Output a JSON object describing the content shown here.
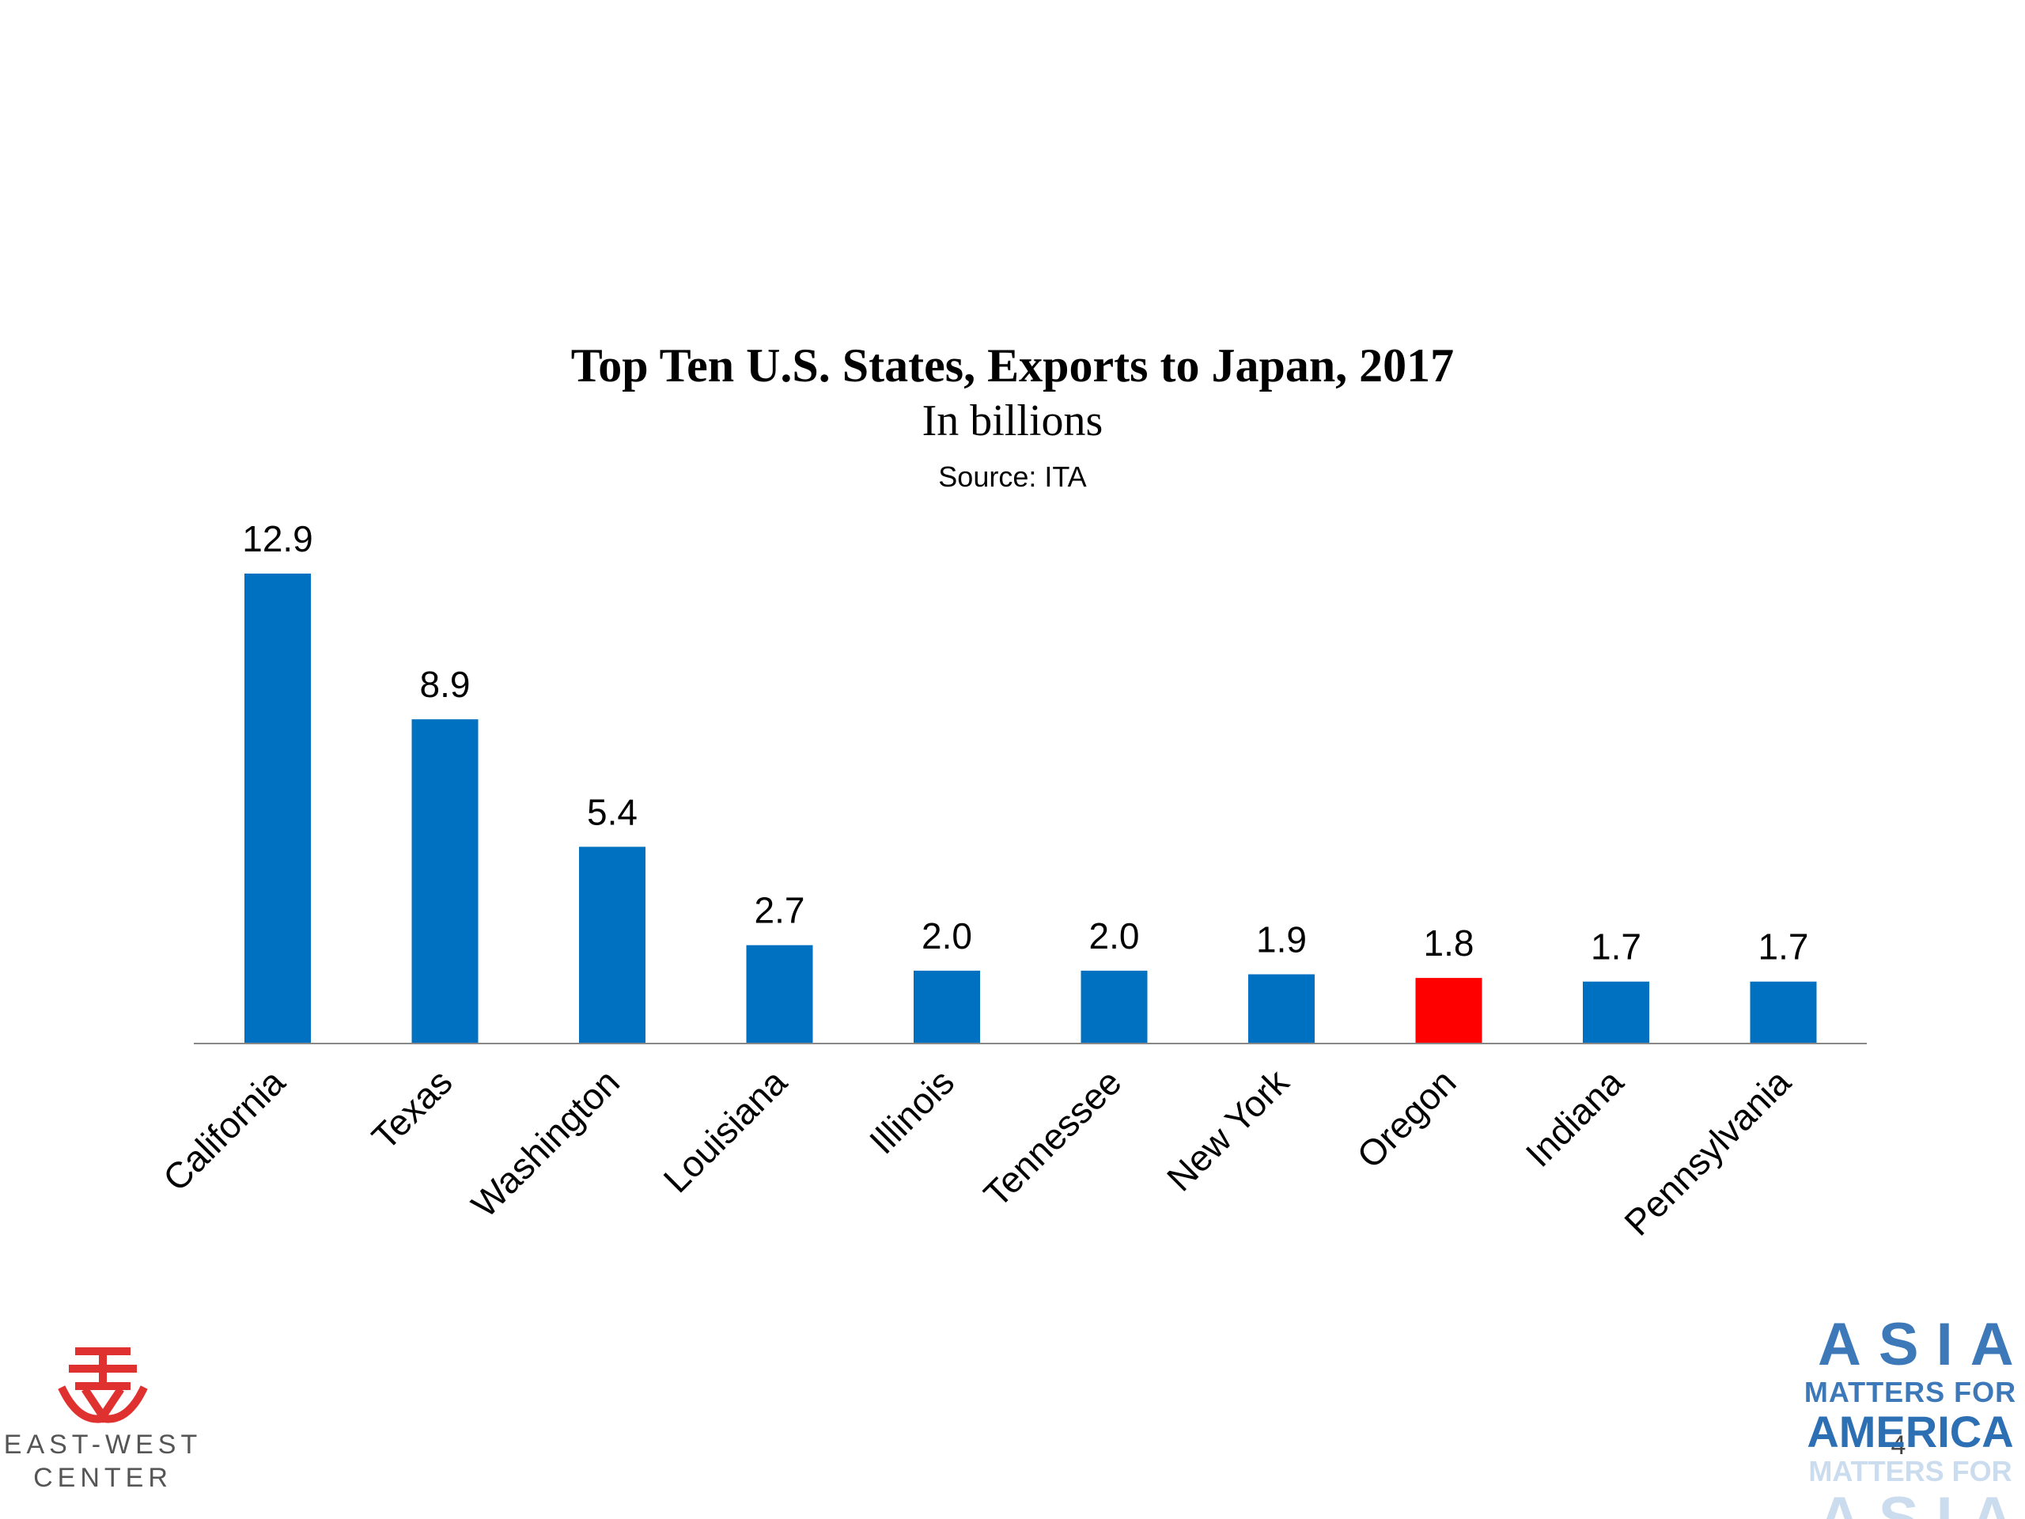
{
  "chart_data": {
    "type": "bar",
    "title": "Top Ten U.S. States, Exports to Japan, 2017",
    "subtitle": "In billions",
    "source": "Source: ITA",
    "categories": [
      "California",
      "Texas",
      "Washington",
      "Louisiana",
      "Illinois",
      "Tennessee",
      "New York",
      "Oregon",
      "Indiana",
      "Pennsylvania"
    ],
    "values": [
      12.9,
      8.9,
      5.4,
      2.7,
      2.0,
      2.0,
      1.9,
      1.8,
      1.7,
      1.7
    ],
    "value_labels": [
      "12.9",
      "8.9",
      "5.4",
      "2.7",
      "2.0",
      "2.0",
      "1.9",
      "1.8",
      "1.7",
      "1.7"
    ],
    "bar_colors": [
      "#0070c0",
      "#0070c0",
      "#0070c0",
      "#0070c0",
      "#0070c0",
      "#0070c0",
      "#0070c0",
      "#ff0000",
      "#0070c0",
      "#0070c0"
    ],
    "highlight_category": "Oregon",
    "ylim": [
      0,
      12.9
    ],
    "grid": false,
    "legend": "none"
  },
  "page_number": "4",
  "logos": {
    "left": {
      "line1": "EAST-WEST",
      "line2": "CENTER",
      "color": "#e03131",
      "icon": "east-west-center-mark"
    },
    "right": {
      "line1": "ASIA",
      "line2": "MATTERS FOR",
      "line3": "AMERICA",
      "line4": "MATTERS FOR",
      "line5": "ASIA",
      "color": "#3d78b8"
    }
  }
}
